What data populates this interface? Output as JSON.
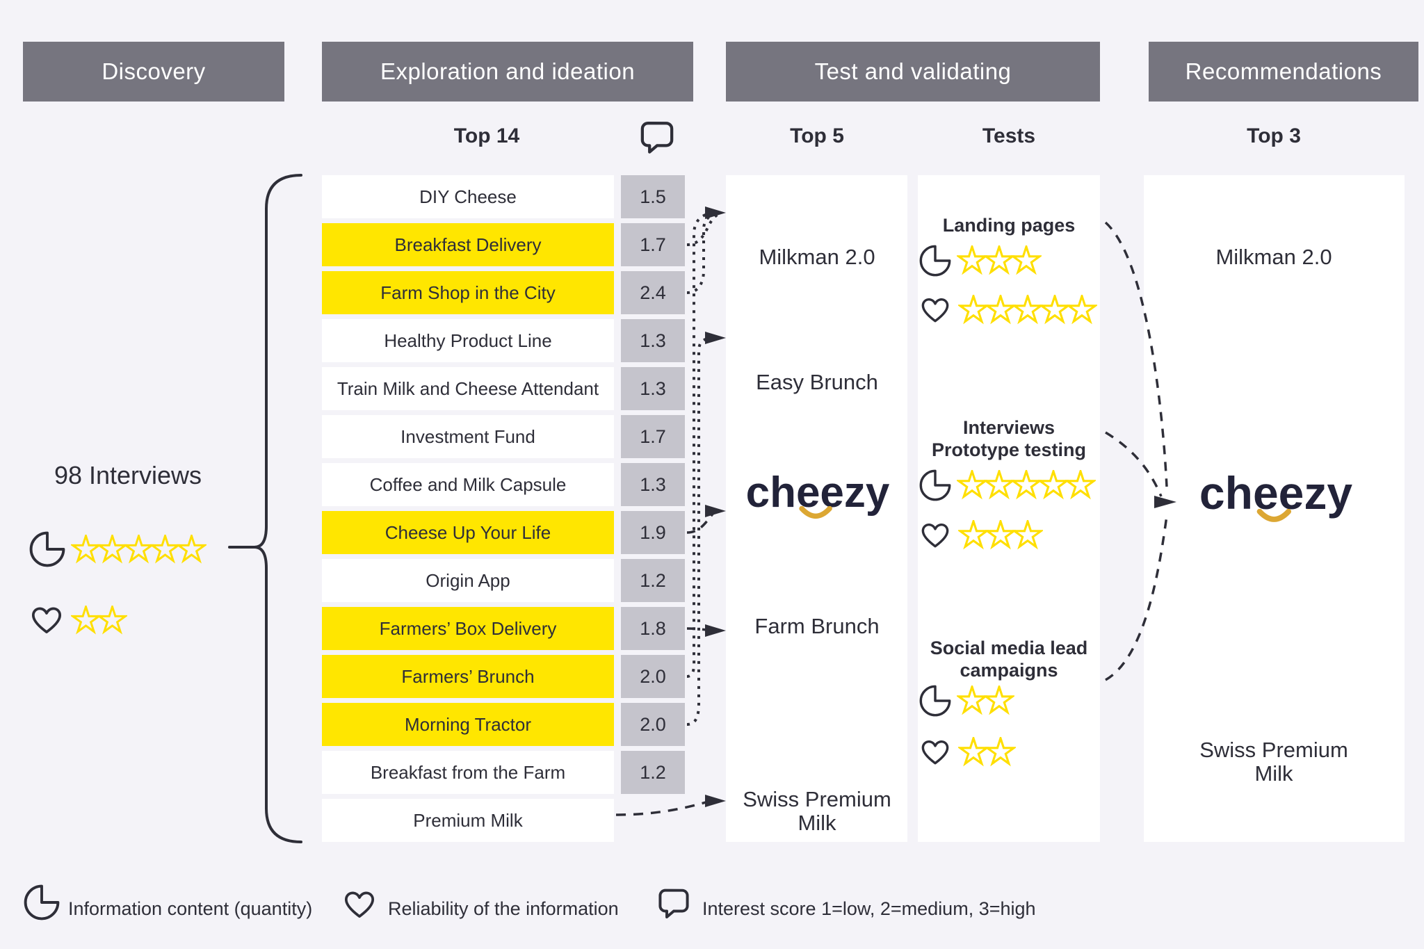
{
  "stages": [
    {
      "label": "Discovery"
    },
    {
      "label": "Exploration and ideation"
    },
    {
      "label": "Test and validating"
    },
    {
      "label": "Recommendations"
    }
  ],
  "columns": {
    "top14": "Top 14",
    "top5": "Top 5",
    "tests": "Tests",
    "top3": "Top 3"
  },
  "discovery": {
    "interviews": "98 Interviews",
    "information_stars": 5,
    "reliability_stars": 2
  },
  "ideas": {
    "items": [
      {
        "label": "DIY Cheese",
        "score": "1.5",
        "highlighted": false
      },
      {
        "label": "Breakfast Delivery",
        "score": "1.7",
        "highlighted": true
      },
      {
        "label": "Farm Shop in the City",
        "score": "2.4",
        "highlighted": true
      },
      {
        "label": "Healthy Product Line",
        "score": "1.3",
        "highlighted": false
      },
      {
        "label": "Train Milk and Cheese Attendant",
        "score": "1.3",
        "highlighted": false
      },
      {
        "label": "Investment Fund",
        "score": "1.7",
        "highlighted": false
      },
      {
        "label": "Coffee and Milk Capsule",
        "score": "1.3",
        "highlighted": false
      },
      {
        "label": "Cheese Up Your Life",
        "score": "1.9",
        "highlighted": true
      },
      {
        "label": "Origin App",
        "score": "1.2",
        "highlighted": false
      },
      {
        "label": "Farmers’ Box Delivery",
        "score": "1.8",
        "highlighted": true
      },
      {
        "label": "Farmers’ Brunch",
        "score": "2.0",
        "highlighted": true
      },
      {
        "label": "Morning Tractor",
        "score": "2.0",
        "highlighted": true
      },
      {
        "label": "Breakfast from the Farm",
        "score": "1.2",
        "highlighted": false
      },
      {
        "label": "Premium Milk",
        "score": null,
        "highlighted": false
      }
    ]
  },
  "top5": {
    "items": [
      {
        "name": "Milkman 2.0"
      },
      {
        "name": "Easy Brunch"
      },
      {
        "name": "cheezy",
        "logo": true
      },
      {
        "name": "Farm Brunch"
      },
      {
        "name": "Swiss Premium Milk",
        "lines": [
          "Swiss Premium",
          "Milk"
        ]
      }
    ]
  },
  "tests": {
    "items": [
      {
        "title_lines": [
          "Landing pages"
        ],
        "information_stars": 3,
        "reliability_stars": 5
      },
      {
        "title_lines": [
          "Interviews",
          "Prototype testing"
        ],
        "information_stars": 5,
        "reliability_stars": 3
      },
      {
        "title_lines": [
          "Social media lead",
          "campaigns"
        ],
        "information_stars": 2,
        "reliability_stars": 2
      }
    ]
  },
  "top3": {
    "items": [
      {
        "name": "Milkman 2.0"
      },
      {
        "name": "cheezy",
        "logo": true
      },
      {
        "name": "Swiss Premium Milk",
        "lines": [
          "Swiss Premium",
          "Milk"
        ]
      }
    ]
  },
  "legend": {
    "items": [
      {
        "icon": "pie-icon",
        "label": "Information content (quantity)"
      },
      {
        "icon": "heart-icon",
        "label": "Reliability of the information"
      },
      {
        "icon": "speech-bubble-icon",
        "label": "Interest score 1=low, 2=medium, 3=high"
      }
    ]
  },
  "brand": {
    "cheezy_logo_text": "cheezy"
  },
  "colors": {
    "background": "#F4F3F8",
    "header": "#76757F",
    "highlight": "#FFE600",
    "score_box": "#C5C4CC",
    "text": "#2E2E38",
    "star": "#FFDF00",
    "logo_navy": "#222339",
    "logo_smile": "#DCA733",
    "panel": "#FFFFFF"
  },
  "connections": {
    "to_top5": [
      {
        "from": "Breakfast Delivery",
        "to": "Milkman 2.0"
      },
      {
        "from": "Farm Shop in the City",
        "to": "Milkman 2.0"
      },
      {
        "from": "Farmers’ Brunch",
        "to": "Milkman 2.0"
      },
      {
        "from": "Morning Tractor",
        "to": "Easy Brunch"
      },
      {
        "from": "Cheese Up Your Life",
        "to": "cheezy"
      },
      {
        "from": "Farmers’ Box Delivery",
        "to": "Farm Brunch"
      },
      {
        "from": "Premium Milk",
        "to": "Swiss Premium Milk"
      }
    ],
    "to_top3": [
      {
        "from": "Landing pages",
        "to": "cheezy"
      },
      {
        "from": "Interviews Prototype testing",
        "to": "cheezy"
      },
      {
        "from": "Social media lead campaigns",
        "to": "cheezy"
      }
    ]
  }
}
